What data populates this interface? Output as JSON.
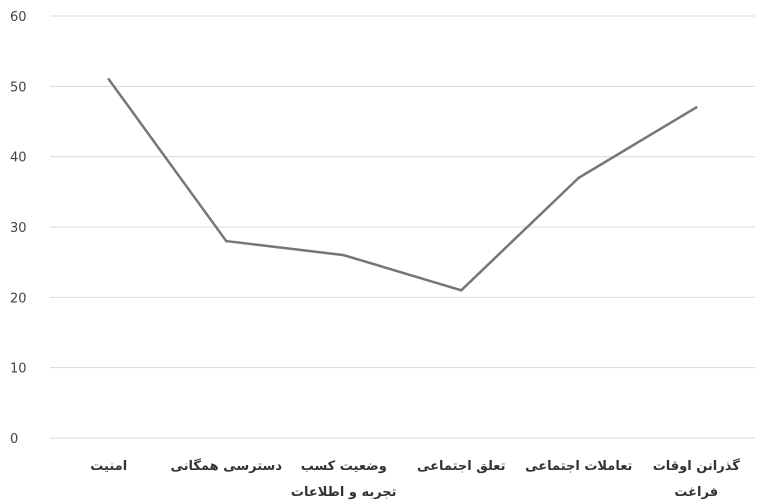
{
  "chart_data": {
    "type": "line",
    "title": "",
    "xlabel": "",
    "ylabel": "",
    "categories": [
      [
        "امنیت"
      ],
      [
        "دسترسی همگانی"
      ],
      [
        "وضعیت کسب",
        "تجربه و اطلاعات"
      ],
      [
        "تعلق اجتماعی"
      ],
      [
        "تعاملات اجتماعی"
      ],
      [
        "گذرانن اوقات",
        "فراغت"
      ]
    ],
    "series": [
      {
        "values": [
          51,
          28,
          26,
          21,
          37,
          47
        ],
        "color": "#767676"
      }
    ],
    "ylim": [
      0,
      60
    ],
    "yticks": [
      0,
      10,
      20,
      30,
      40,
      50,
      60
    ],
    "grid": true,
    "legend": "none"
  }
}
